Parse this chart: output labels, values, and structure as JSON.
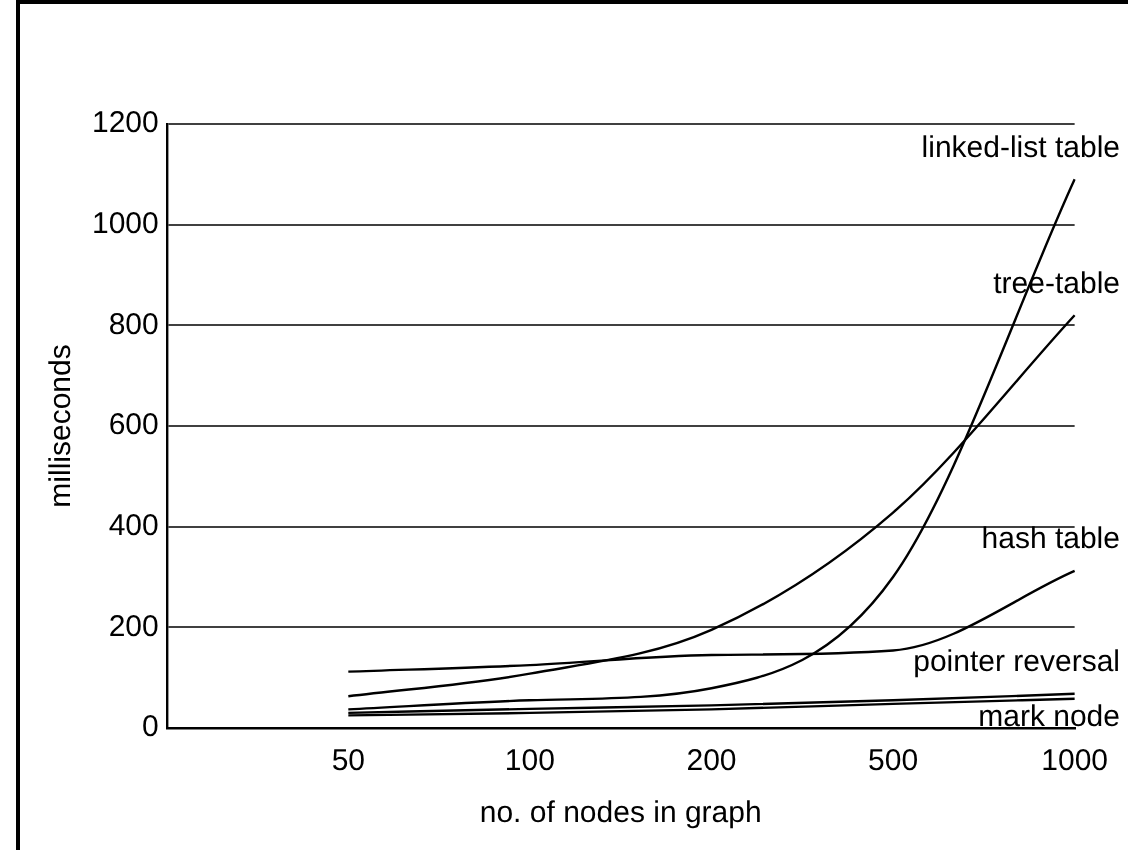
{
  "chart_data": {
    "type": "line",
    "xlabel": "no. of nodes in graph",
    "ylabel": "milliseconds",
    "categories": [
      null,
      "50",
      "100",
      "200",
      "500",
      "1000"
    ],
    "series": [
      {
        "name": "linked-list table",
        "color": "#000000",
        "values": [
          null,
          37,
          55,
          79,
          300,
          1090
        ]
      },
      {
        "name": "tree-table",
        "color": "#000000",
        "values": [
          null,
          63,
          108,
          195,
          428,
          820
        ]
      },
      {
        "name": "hash table",
        "color": "#000000",
        "values": [
          null,
          112,
          125,
          145,
          154,
          312
        ]
      },
      {
        "name": "pointer reversal",
        "color": "#000000",
        "values": [
          null,
          30,
          38,
          45,
          55,
          68
        ]
      },
      {
        "name": "mark node",
        "color": "#000000",
        "values": [
          null,
          25,
          30,
          37,
          48,
          58
        ]
      }
    ],
    "ylim": [
      0,
      1200
    ],
    "yticks": [
      0,
      200,
      400,
      600,
      800,
      1000,
      1200
    ],
    "grid": "y",
    "legend": false,
    "marker": "none",
    "line_style": "solid"
  }
}
